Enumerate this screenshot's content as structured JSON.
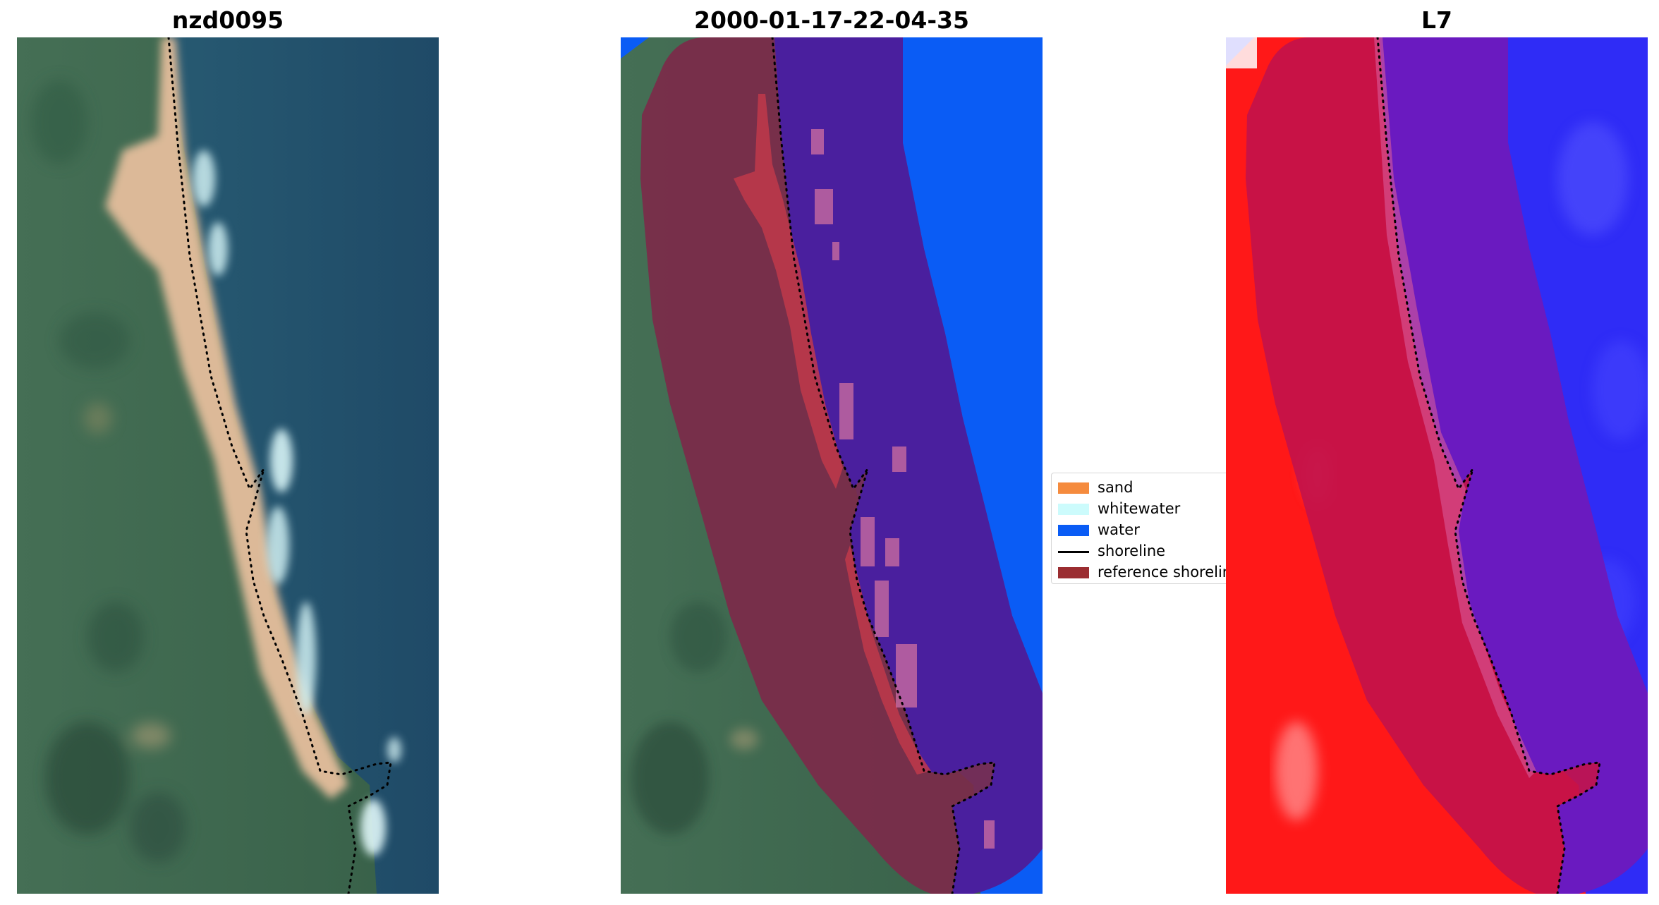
{
  "panels": [
    {
      "title": "nzd0095"
    },
    {
      "title": "2000-01-17-22-04-35"
    },
    {
      "title": "L7"
    }
  ],
  "legend": {
    "items": [
      {
        "label": "sand",
        "kind": "patch",
        "color": "#f58b3e"
      },
      {
        "label": "whitewater",
        "kind": "patch",
        "color": "#ccfbfc"
      },
      {
        "label": "water",
        "kind": "patch",
        "color": "#0a5cf5"
      },
      {
        "label": "shoreline",
        "kind": "line",
        "color": "#000000"
      },
      {
        "label": "reference shoreline",
        "kind": "patch",
        "color": "#9b2d31"
      }
    ]
  },
  "colors": {
    "land": "#3c6a4e",
    "sea": "#1f4e6b",
    "sand": "#d9b592",
    "whitewater": "#cdeef0",
    "water_class": "#0a5cf5",
    "buffer_land": "#7a2a4a",
    "buffer_water": "#4a1f9e",
    "false_red": "#ff1a1a",
    "false_blue": "#2a2aff"
  }
}
